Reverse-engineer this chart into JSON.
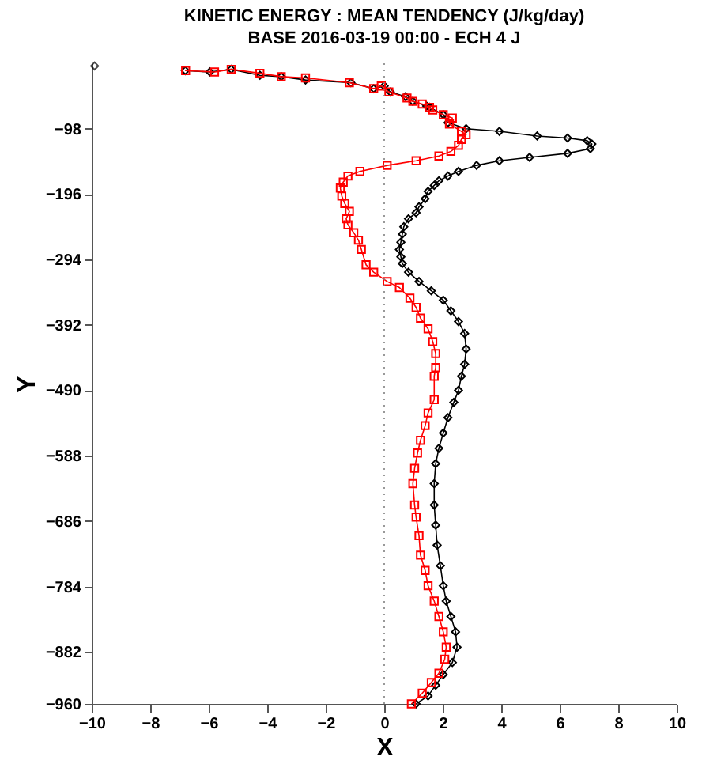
{
  "chart_data": {
    "type": "line",
    "title": "KINETIC ENERGY : MEAN TENDENCY (J/kg/day)",
    "subtitle": "BASE 2016-03-19 00:00 - ECH 4 J",
    "xlabel": "X",
    "ylabel": "Y",
    "xlim": [
      -10,
      10
    ],
    "xticks": [
      -10,
      -8,
      -6,
      -4,
      -2,
      0,
      2,
      4,
      6,
      8,
      10
    ],
    "ylim": [
      -960,
      0
    ],
    "yticks": [
      -98,
      -196,
      -294,
      -392,
      -490,
      -588,
      -686,
      -784,
      -882,
      -960
    ],
    "grid": false,
    "line_style": "solid",
    "ref_lines": [
      {
        "axis": "x",
        "value": 0,
        "color": "#808080",
        "line_style": "dotted"
      }
    ],
    "series": [
      {
        "type": "scatter",
        "color": "#000000",
        "marker": "diamond",
        "x": [
          -9.9
        ],
        "values": [
          -4
        ]
      },
      {
        "color": "#000000",
        "marker": "diamond",
        "x": [
          -6.8,
          -5.96,
          -5.23,
          -4.25,
          -3.52,
          -2.69,
          -1.14,
          -0.36,
          0.0,
          0.21,
          0.73,
          0.98,
          1.45,
          1.55,
          2.02,
          2.18,
          2.8,
          3.94,
          5.23,
          6.27,
          6.94,
          7.1,
          7.05,
          6.27,
          4.97,
          3.94,
          3.16,
          2.54,
          2.18,
          1.87,
          1.71,
          1.5,
          1.4,
          1.19,
          1.09,
          0.83,
          0.67,
          0.62,
          0.57,
          0.52,
          0.57,
          0.62,
          0.83,
          1.19,
          1.61,
          2.02,
          2.28,
          2.54,
          2.75,
          2.8,
          2.75,
          2.64,
          2.54,
          2.38,
          2.18,
          2.02,
          1.87,
          1.76,
          1.71,
          1.71,
          1.76,
          1.81,
          1.92,
          2.02,
          2.12,
          2.28,
          2.44,
          2.49,
          2.33,
          2.02,
          1.76,
          1.5,
          1.09
        ],
        "values": [
          -11,
          -13,
          -9,
          -18,
          -20,
          -25,
          -29,
          -38,
          -34,
          -43,
          -50,
          -57,
          -64,
          -66,
          -77,
          -89,
          -98,
          -102,
          -109,
          -112,
          -116,
          -121,
          -128,
          -135,
          -141,
          -146,
          -153,
          -162,
          -169,
          -176,
          -183,
          -192,
          -203,
          -215,
          -224,
          -233,
          -245,
          -256,
          -268,
          -279,
          -290,
          -300,
          -313,
          -327,
          -341,
          -355,
          -371,
          -387,
          -405,
          -428,
          -451,
          -469,
          -490,
          -508,
          -531,
          -554,
          -577,
          -600,
          -630,
          -662,
          -692,
          -722,
          -753,
          -783,
          -806,
          -829,
          -852,
          -875,
          -898,
          -916,
          -932,
          -948,
          -960
        ]
      },
      {
        "color": "#ff0000",
        "marker": "square",
        "x": [
          -6.79,
          -5.8,
          -5.23,
          -4.25,
          -3.52,
          -2.69,
          -1.19,
          -0.36,
          -0.1,
          0.16,
          0.78,
          0.98,
          1.3,
          1.55,
          1.66,
          2.02,
          2.33,
          2.23,
          2.64,
          2.8,
          2.64,
          2.54,
          2.28,
          1.87,
          1.09,
          0.1,
          -0.83,
          -1.24,
          -1.4,
          -1.5,
          -1.45,
          -1.35,
          -1.19,
          -1.3,
          -1.24,
          -1.04,
          -0.88,
          -0.78,
          -0.62,
          -0.36,
          0.1,
          0.52,
          0.88,
          1.09,
          1.24,
          1.5,
          1.66,
          1.76,
          1.76,
          1.71,
          1.71,
          1.5,
          1.4,
          1.24,
          1.14,
          1.04,
          0.98,
          1.04,
          1.09,
          1.19,
          1.24,
          1.4,
          1.5,
          1.71,
          1.87,
          2.02,
          2.12,
          2.07,
          1.87,
          1.61,
          1.3,
          0.93
        ],
        "values": [
          -11,
          -13,
          -9,
          -15,
          -20,
          -22,
          -29,
          -38,
          -34,
          -43,
          -52,
          -57,
          -61,
          -66,
          -70,
          -77,
          -82,
          -91,
          -102,
          -107,
          -114,
          -123,
          -132,
          -139,
          -146,
          -153,
          -162,
          -169,
          -178,
          -187,
          -199,
          -210,
          -222,
          -233,
          -242,
          -254,
          -265,
          -279,
          -302,
          -313,
          -327,
          -336,
          -352,
          -366,
          -382,
          -398,
          -417,
          -435,
          -456,
          -469,
          -504,
          -524,
          -543,
          -565,
          -584,
          -607,
          -630,
          -662,
          -680,
          -708,
          -737,
          -760,
          -783,
          -806,
          -829,
          -852,
          -875,
          -893,
          -914,
          -928,
          -944,
          -960
        ]
      }
    ]
  }
}
